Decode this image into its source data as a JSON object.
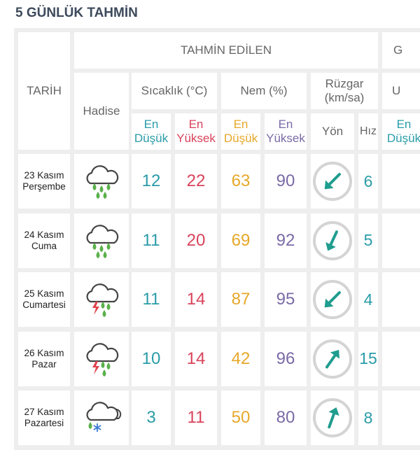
{
  "title": "5 GÜNLÜK TAHMİN",
  "header": {
    "date": "TARİH",
    "forecast": "TAHMİN EDİLEN",
    "cut_group": "G",
    "event": "Hadise",
    "temperature": "Sıcaklık (°C)",
    "humidity": "Nem (%)",
    "wind": "Rüzgar (km/sa)",
    "cut_col": "U",
    "temp_low": "En Düşük",
    "temp_high": "En Yüksek",
    "hum_low": "En Düşük",
    "hum_high": "En Yüksek",
    "direction": "Yön",
    "speed": "Hız",
    "cut_sub": "En Düşük"
  },
  "rows": [
    {
      "date": "23 Kasım",
      "day": "Perşembe",
      "temp_low": 12,
      "temp_high": 22,
      "hum_low": 63,
      "hum_high": 90,
      "speed": 6
    },
    {
      "date": "24 Kasım",
      "day": "Cuma",
      "temp_low": 11,
      "temp_high": 20,
      "hum_low": 69,
      "hum_high": 92,
      "speed": 5
    },
    {
      "date": "25 Kasım",
      "day": "Cumartesi",
      "temp_low": 11,
      "temp_high": 14,
      "hum_low": 87,
      "hum_high": 95,
      "speed": 4
    },
    {
      "date": "26 Kasım",
      "day": "Pazar",
      "temp_low": 10,
      "temp_high": 14,
      "hum_low": 42,
      "hum_high": 96,
      "speed": 15
    },
    {
      "date": "27 Kasım",
      "day": "Pazartesi",
      "temp_low": 3,
      "temp_high": 11,
      "hum_low": 50,
      "hum_high": 80,
      "speed": 8
    }
  ]
}
